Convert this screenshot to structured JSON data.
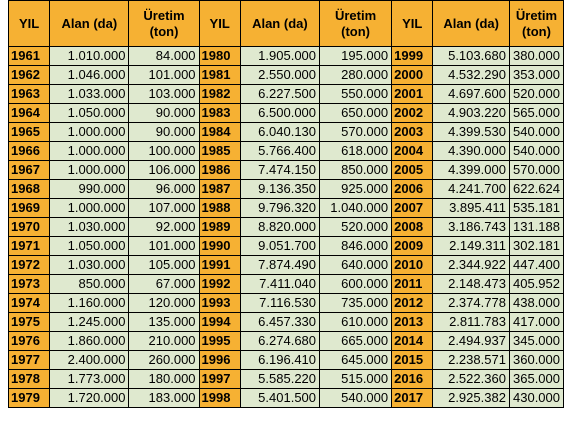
{
  "headers": {
    "year": "YIL",
    "area": "Alan (da)",
    "production_line1": "Üretim",
    "production_line2": "(ton)"
  },
  "rows": [
    [
      [
        "1961",
        "1.010.000",
        "84.000"
      ],
      [
        "1980",
        "1.905.000",
        "195.000"
      ],
      [
        "1999",
        "5.103.680",
        "380.000"
      ]
    ],
    [
      [
        "1962",
        "1.046.000",
        "101.000"
      ],
      [
        "1981",
        "2.550.000",
        "280.000"
      ],
      [
        "2000",
        "4.532.290",
        "353.000"
      ]
    ],
    [
      [
        "1963",
        "1.033.000",
        "103.000"
      ],
      [
        "1982",
        "6.227.500",
        "550.000"
      ],
      [
        "2001",
        "4.697.600",
        "520.000"
      ]
    ],
    [
      [
        "1964",
        "1.050.000",
        "90.000"
      ],
      [
        "1983",
        "6.500.000",
        "650.000"
      ],
      [
        "2002",
        "4.903.220",
        "565.000"
      ]
    ],
    [
      [
        "1965",
        "1.000.000",
        "90.000"
      ],
      [
        "1984",
        "6.040.130",
        "570.000"
      ],
      [
        "2003",
        "4.399.530",
        "540.000"
      ]
    ],
    [
      [
        "1966",
        "1.000.000",
        "100.000"
      ],
      [
        "1985",
        "5.766.400",
        "618.000"
      ],
      [
        "2004",
        "4.390.000",
        "540.000"
      ]
    ],
    [
      [
        "1967",
        "1.000.000",
        "106.000"
      ],
      [
        "1986",
        "7.474.150",
        "850.000"
      ],
      [
        "2005",
        "4.399.000",
        "570.000"
      ]
    ],
    [
      [
        "1968",
        "990.000",
        "96.000"
      ],
      [
        "1987",
        "9.136.350",
        "925.000"
      ],
      [
        "2006",
        "4.241.700",
        "622.624"
      ]
    ],
    [
      [
        "1969",
        "1.000.000",
        "107.000"
      ],
      [
        "1988",
        "9.796.320",
        "1.040.000"
      ],
      [
        "2007",
        "3.895.411",
        "535.181"
      ]
    ],
    [
      [
        "1970",
        "1.030.000",
        "92.000"
      ],
      [
        "1989",
        "8.820.000",
        "520.000"
      ],
      [
        "2008",
        "3.186.743",
        "131.188"
      ]
    ],
    [
      [
        "1971",
        "1.050.000",
        "101.000"
      ],
      [
        "1990",
        "9.051.700",
        "846.000"
      ],
      [
        "2009",
        "2.149.311",
        "302.181"
      ]
    ],
    [
      [
        "1972",
        "1.030.000",
        "105.000"
      ],
      [
        "1991",
        "7.874.490",
        "640.000"
      ],
      [
        "2010",
        "2.344.922",
        "447.400"
      ]
    ],
    [
      [
        "1973",
        "850.000",
        "67.000"
      ],
      [
        "1992",
        "7.411.040",
        "600.000"
      ],
      [
        "2011",
        "2.148.473",
        "405.952"
      ]
    ],
    [
      [
        "1974",
        "1.160.000",
        "120.000"
      ],
      [
        "1993",
        "7.116.530",
        "735.000"
      ],
      [
        "2012",
        "2.374.778",
        "438.000"
      ]
    ],
    [
      [
        "1975",
        "1.245.000",
        "135.000"
      ],
      [
        "1994",
        "6.457.330",
        "610.000"
      ],
      [
        "2013",
        "2.811.783",
        "417.000"
      ]
    ],
    [
      [
        "1976",
        "1.860.000",
        "210.000"
      ],
      [
        "1995",
        "6.274.680",
        "665.000"
      ],
      [
        "2014",
        "2.494.937",
        "345.000"
      ]
    ],
    [
      [
        "1977",
        "2.400.000",
        "260.000"
      ],
      [
        "1996",
        "6.196.410",
        "645.000"
      ],
      [
        "2015",
        "2.238.571",
        "360.000"
      ]
    ],
    [
      [
        "1978",
        "1.773.000",
        "180.000"
      ],
      [
        "1997",
        "5.585.220",
        "515.000"
      ],
      [
        "2016",
        "2.522.360",
        "365.000"
      ]
    ],
    [
      [
        "1979",
        "1.720.000",
        "183.000"
      ],
      [
        "1998",
        "5.401.500",
        "540.000"
      ],
      [
        "2017",
        "2.925.382",
        "430.000"
      ]
    ]
  ]
}
